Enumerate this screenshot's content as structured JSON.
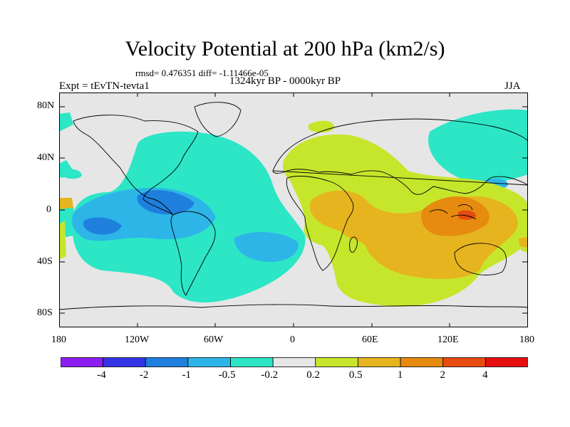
{
  "title": "Velocity Potential at 200 hPa (km2/s)",
  "stats": "rmsd= 0.476351 diff= -1.11466e-05",
  "left_label": "Expt = tEvTN-tevta1",
  "center_label": "1324kyr BP - 0000kyr BP",
  "right_label": "JJA",
  "lat_labels": [
    "80N",
    "40N",
    "0",
    "40S",
    "80S"
  ],
  "lon_labels": [
    "180",
    "120W",
    "60W",
    "0",
    "60E",
    "120E",
    "180"
  ],
  "colorbar": {
    "colors": [
      "#8c1ff0",
      "#3434e6",
      "#1f7fdd",
      "#2db5e8",
      "#2ce6c6",
      "#e6e6e6",
      "#c6e62c",
      "#e6b41e",
      "#e68a10",
      "#e64b10",
      "#e60f0f"
    ],
    "labels": [
      "-4",
      "-2",
      "-1",
      "-0.5",
      "-0.2",
      "0.2",
      "0.5",
      "1",
      "2",
      "4"
    ]
  },
  "fills": {
    "neutral": "#e6e6e6",
    "neg_weak": "#2ce6c6",
    "neg_mid": "#2db5e8",
    "neg_strong": "#1f7fdd",
    "pos_weak": "#c6e62c",
    "pos_mid": "#e6b41e",
    "pos_strong": "#e68a10",
    "pos_max": "#e64b10"
  }
}
